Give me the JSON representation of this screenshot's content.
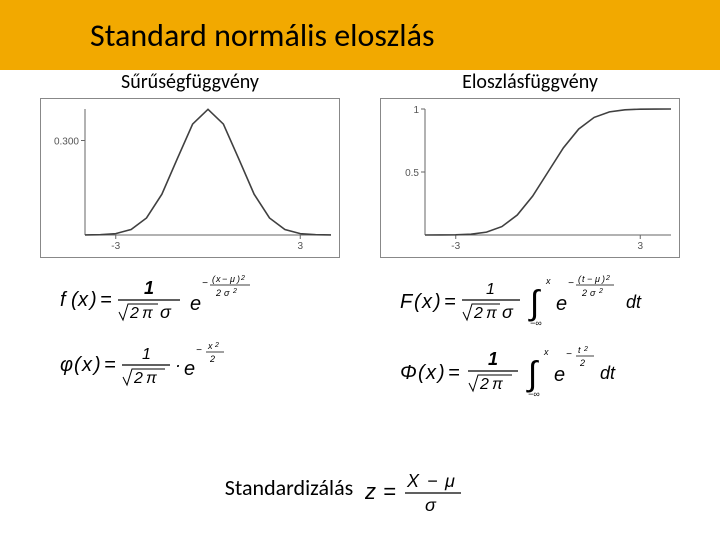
{
  "header": {
    "title": "Standard normális eloszlás",
    "background_color": "#f2a900",
    "title_fontsize": 32
  },
  "left": {
    "subtitle": "Sűrűségfüggvény",
    "chart": {
      "type": "line",
      "xlim": [
        -4,
        4
      ],
      "ylim": [
        0,
        0.4
      ],
      "xticks": [
        -3,
        3
      ],
      "xtick_labels": [
        "-3",
        "3"
      ],
      "yticks": [
        0.3
      ],
      "ytick_labels": [
        "0.300"
      ],
      "line_color": "#404040",
      "axis_color": "#666666",
      "background_color": "#ffffff",
      "points": [
        [
          -4,
          0.0001
        ],
        [
          -3.5,
          0.0009
        ],
        [
          -3,
          0.0044
        ],
        [
          -2.5,
          0.0175
        ],
        [
          -2,
          0.054
        ],
        [
          -1.5,
          0.1295
        ],
        [
          -1,
          0.242
        ],
        [
          -0.5,
          0.3521
        ],
        [
          0,
          0.3989
        ],
        [
          0.5,
          0.3521
        ],
        [
          1,
          0.242
        ],
        [
          1.5,
          0.1295
        ],
        [
          2,
          0.054
        ],
        [
          2.5,
          0.0175
        ],
        [
          3,
          0.0044
        ],
        [
          3.5,
          0.0009
        ],
        [
          4,
          0.0001
        ]
      ]
    },
    "formula1_tex": "f(x) = (1 / (√(2π) σ)) · e^{ −(x−μ)² / (2σ²) }",
    "formula2_tex": "φ(x) = (1 / √(2π)) · e^{ −x² / 2 }"
  },
  "right": {
    "subtitle": "Eloszlásfüggvény",
    "chart": {
      "type": "line",
      "xlim": [
        -4,
        4
      ],
      "ylim": [
        0,
        1
      ],
      "xticks": [
        -3,
        3
      ],
      "xtick_labels": [
        "-3",
        "3"
      ],
      "yticks": [
        0.5,
        1
      ],
      "ytick_labels": [
        "0.5",
        "1"
      ],
      "line_color": "#404040",
      "axis_color": "#666666",
      "background_color": "#ffffff",
      "points": [
        [
          -4,
          3e-05
        ],
        [
          -3.5,
          0.00023
        ],
        [
          -3,
          0.00135
        ],
        [
          -2.5,
          0.00621
        ],
        [
          -2,
          0.02275
        ],
        [
          -1.5,
          0.0668
        ],
        [
          -1,
          0.1587
        ],
        [
          -0.5,
          0.3085
        ],
        [
          0,
          0.5
        ],
        [
          0.5,
          0.6915
        ],
        [
          1,
          0.8413
        ],
        [
          1.5,
          0.9332
        ],
        [
          2,
          0.9772
        ],
        [
          2.5,
          0.9938
        ],
        [
          3,
          0.9987
        ],
        [
          3.5,
          0.9998
        ],
        [
          4,
          0.99997
        ]
      ]
    },
    "formula1_tex": "F(x) = (1 / (√(2π) σ)) · ∫_{−∞}^{x} e^{ −(t−μ)² / (2σ²) } dt",
    "formula2_tex": "Φ(x) = (1 / √(2π)) · ∫_{−∞}^{x} e^{ −t² / 2 } dt"
  },
  "bottom": {
    "label": "Standardizálás",
    "formula_tex": "z = (X − μ) / σ"
  }
}
